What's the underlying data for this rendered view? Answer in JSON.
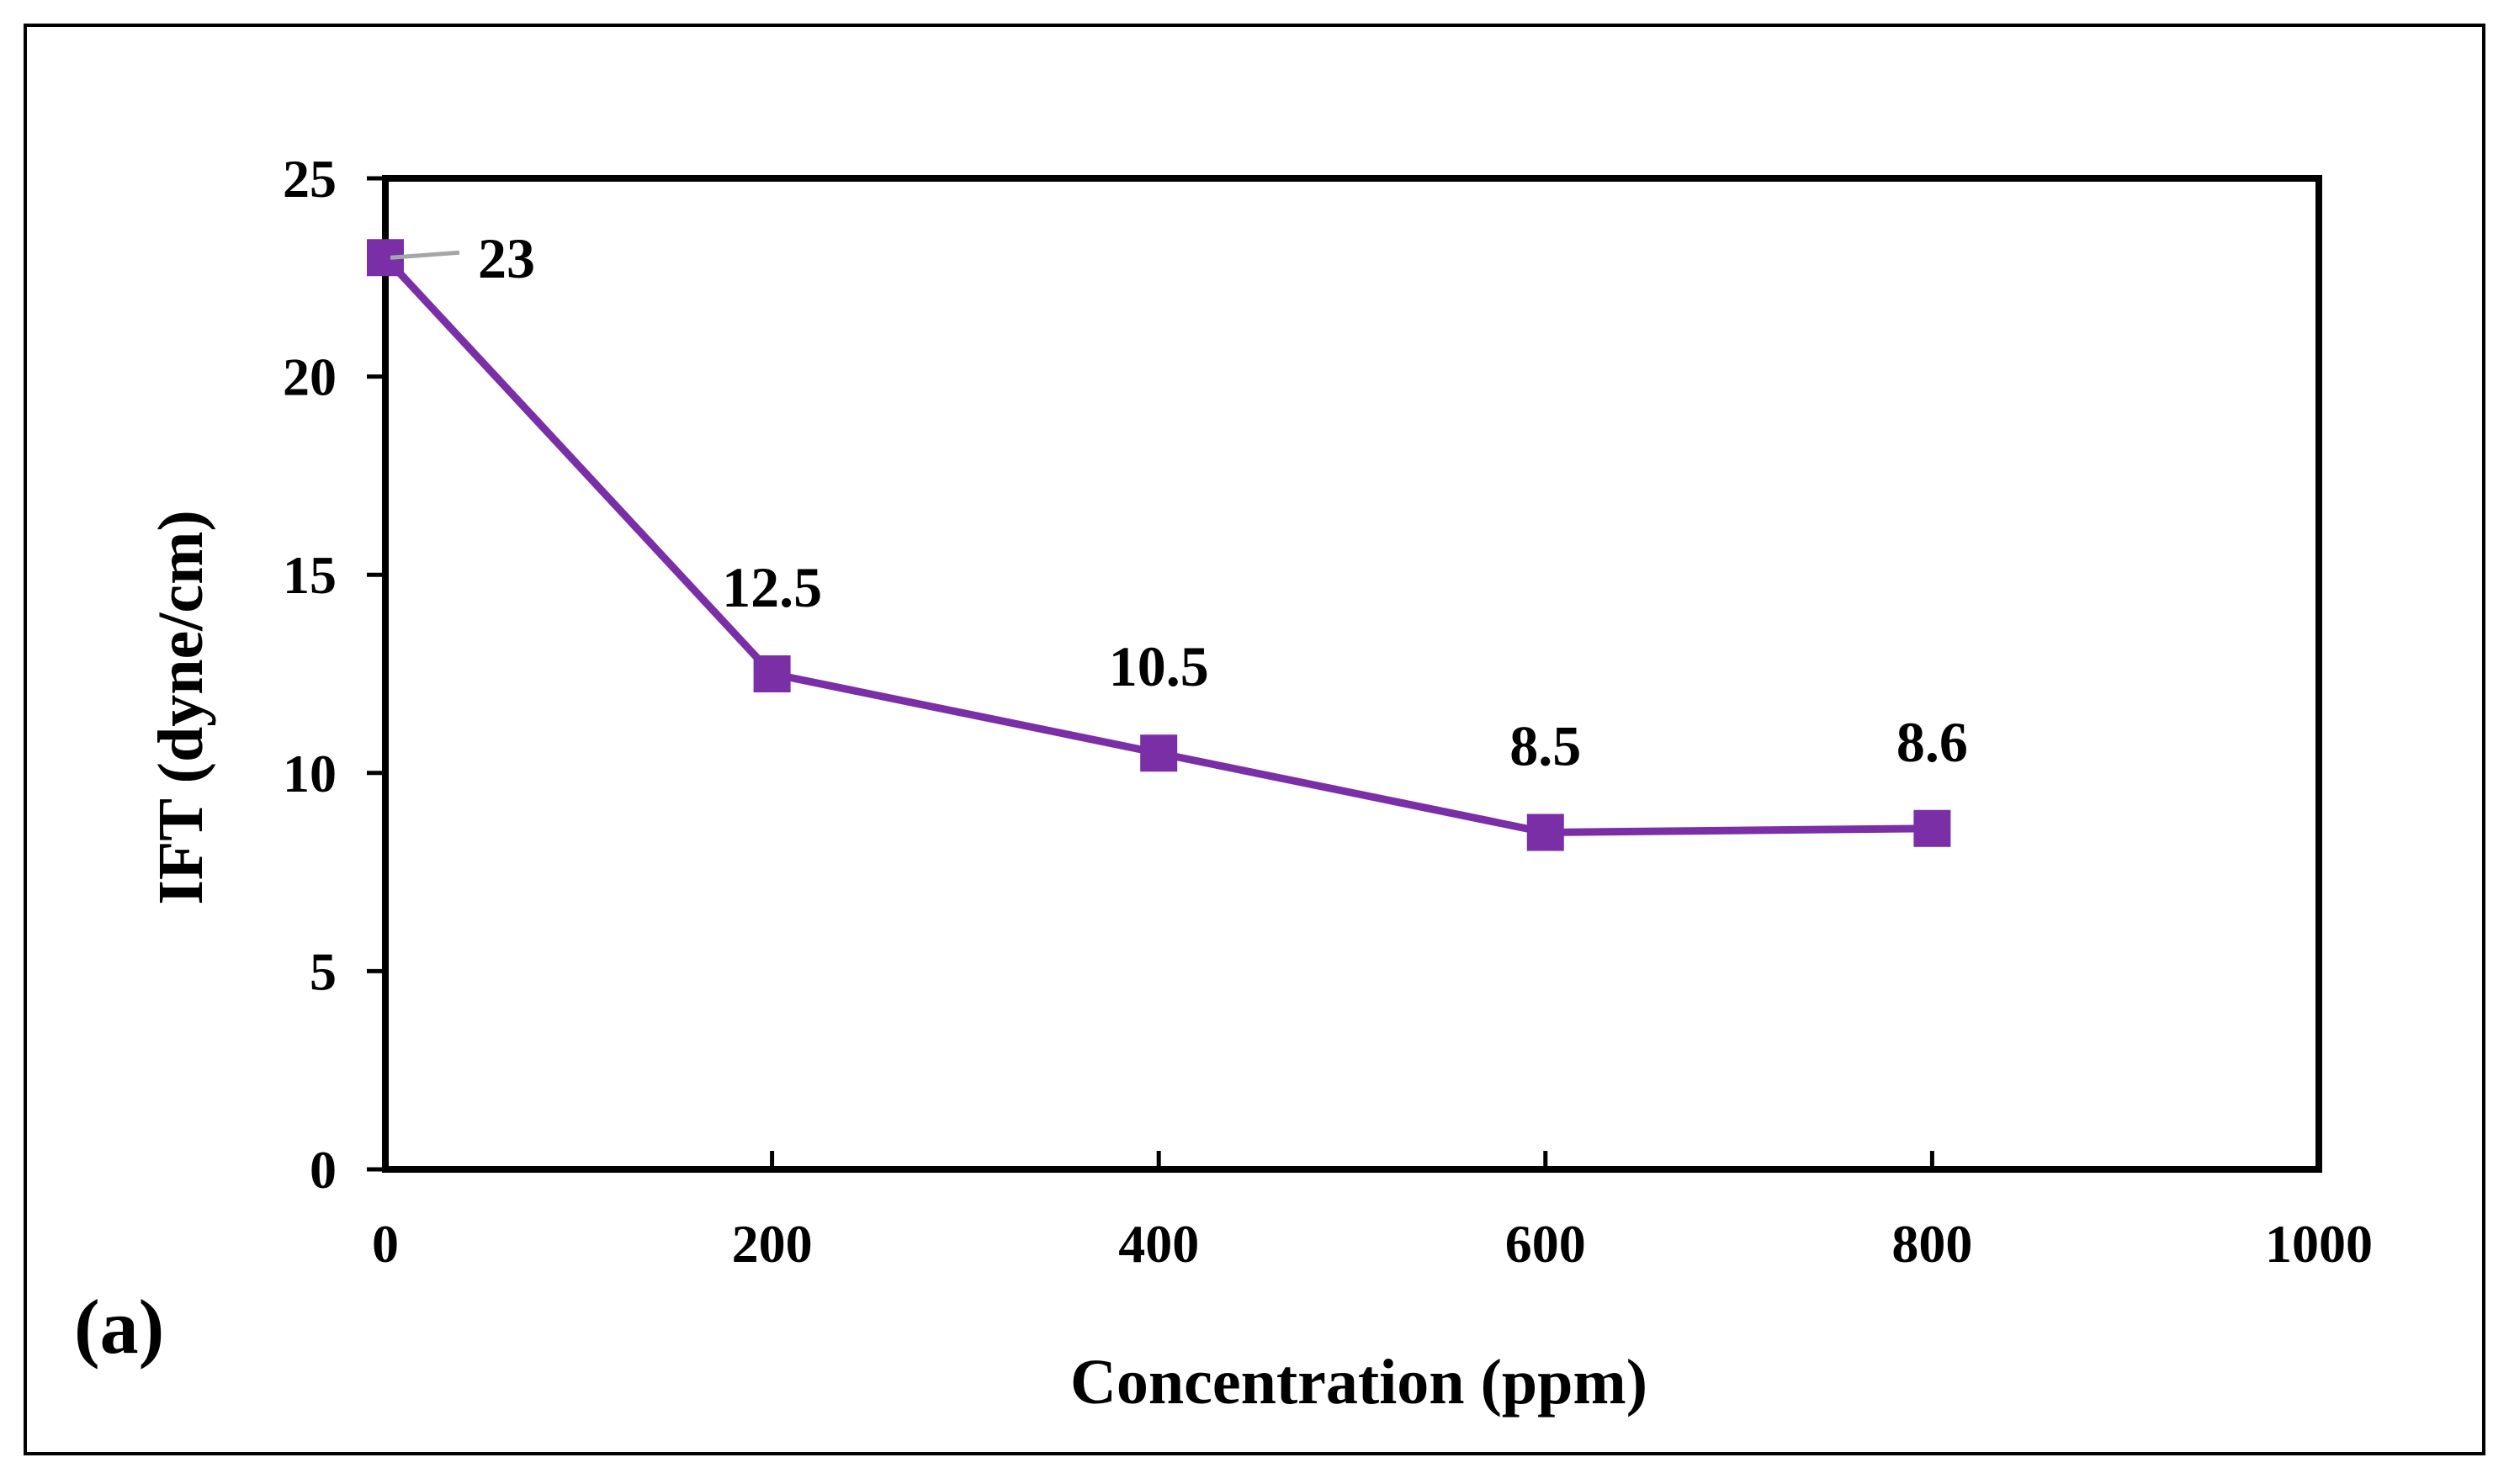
{
  "chart_data": {
    "type": "line",
    "title": "",
    "xlabel": "Concentration (ppm)",
    "ylabel": "IFT (dyne/cm)",
    "panel_label": "(a)",
    "xlim": [
      0,
      1000
    ],
    "ylim": [
      0,
      25
    ],
    "xticks": [
      0,
      200,
      400,
      600,
      800,
      1000
    ],
    "yticks": [
      0,
      5,
      10,
      15,
      20,
      25
    ],
    "grid": false,
    "legend": "none",
    "series": [
      {
        "name": "IFT",
        "x": [
          0,
          200,
          400,
          600,
          800
        ],
        "y": [
          23,
          12.5,
          10.5,
          8.5,
          8.6
        ],
        "labels": [
          "23",
          "12.5",
          "10.5",
          "8.5",
          "8.6"
        ],
        "marker": "square",
        "color": "#7B2FA6"
      }
    ]
  },
  "colors": {
    "series": "#7B2FA6",
    "leader": "#A6A6A6",
    "axis": "#000000",
    "frame": "#000000"
  }
}
